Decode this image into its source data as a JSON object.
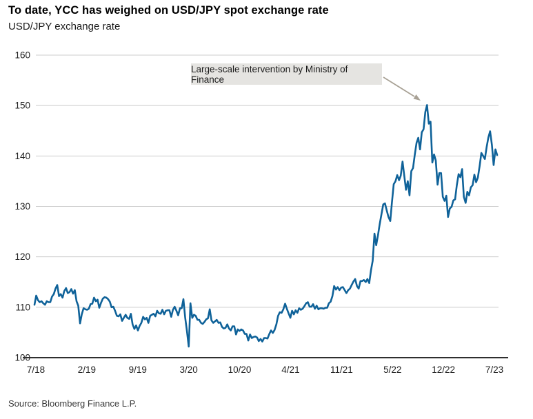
{
  "header": {
    "title": "To date, YCC has weighed on USD/JPY spot exchange rate",
    "subtitle": "USD/JPY exchange rate"
  },
  "annotation": {
    "text": "Large-scale intervention by Ministry of Finance"
  },
  "source": {
    "label": "Source: Bloomberg Finance L.P."
  },
  "chart_data": {
    "type": "line",
    "title": "To date, YCC has weighed on USD/JPY spot exchange rate",
    "subtitle": "USD/JPY exchange rate",
    "xlabel": "",
    "ylabel": "",
    "ylim": [
      100,
      160
    ],
    "grid": "horizontal",
    "legend_position": "none",
    "x_tick_labels": [
      "7/18",
      "2/19",
      "9/19",
      "3/20",
      "10/20",
      "4/21",
      "11/21",
      "5/22",
      "12/22",
      "7/23"
    ],
    "y_tick_labels": [
      160,
      150,
      140,
      130,
      120,
      110,
      100
    ],
    "annotation": {
      "text": "Large-scale intervention by Ministry of Finance",
      "points_to_value": 150.1,
      "points_to_date": "10/22"
    },
    "colors": {
      "line": "#0f6299",
      "gridline": "#cccccc",
      "axis": "#2f2f2f",
      "tick_text": "#222222",
      "annotation_bg": "#e5e4e1",
      "arrow": "#a8a195"
    },
    "series": [
      {
        "name": "USD/JPY spot exchange rate",
        "frequency": "weekly",
        "start_label": "7/18",
        "end_label": "7/23",
        "values": [
          110.5,
          112.3,
          111.4,
          111.0,
          111.2,
          110.8,
          110.5,
          111.2,
          111.0,
          111.0,
          112.1,
          112.6,
          113.7,
          114.4,
          112.2,
          112.6,
          111.9,
          113.2,
          113.8,
          112.8,
          113.0,
          113.6,
          112.7,
          113.4,
          111.2,
          110.3,
          106.8,
          108.6,
          109.8,
          109.6,
          109.5,
          109.7,
          110.6,
          110.7,
          111.9,
          111.2,
          111.5,
          109.9,
          110.9,
          111.7,
          112.0,
          111.9,
          111.6,
          111.1,
          110.0,
          110.1,
          109.3,
          108.3,
          108.2,
          108.6,
          107.3,
          107.9,
          108.5,
          107.9,
          107.7,
          108.7,
          106.6,
          105.7,
          106.4,
          105.4,
          106.3,
          106.9,
          108.1,
          107.6,
          107.9,
          106.9,
          108.3,
          108.5,
          108.7,
          108.2,
          109.3,
          108.8,
          108.7,
          109.5,
          108.6,
          109.3,
          109.4,
          109.4,
          108.1,
          109.5,
          110.1,
          109.3,
          108.4,
          109.8,
          109.8,
          111.6,
          107.9,
          105.3,
          102.2,
          110.8,
          107.9,
          108.5,
          108.3,
          107.5,
          107.5,
          106.9,
          106.7,
          107.1,
          107.6,
          107.8,
          109.6,
          107.4,
          106.9,
          107.2,
          107.5,
          106.9,
          107.0,
          106.1,
          105.8,
          105.9,
          106.6,
          105.8,
          105.4,
          106.2,
          106.2,
          104.6,
          105.6,
          105.3,
          105.6,
          105.4,
          104.7,
          104.7,
          103.4,
          104.6,
          103.9,
          104.1,
          104.2,
          104.0,
          103.3,
          103.7,
          103.2,
          103.9,
          103.9,
          103.8,
          104.7,
          105.4,
          104.9,
          105.5,
          106.6,
          108.3,
          109.0,
          108.9,
          109.6,
          110.7,
          109.7,
          108.8,
          107.9,
          109.3,
          108.6,
          109.4,
          108.9,
          109.8,
          109.5,
          109.7,
          110.2,
          110.8,
          111.0,
          110.1,
          110.1,
          110.6,
          109.7,
          110.3,
          109.6,
          109.8,
          109.8,
          109.7,
          109.9,
          109.9,
          110.8,
          111.1,
          112.2,
          114.2,
          113.5,
          114.0,
          113.4,
          113.9,
          114.0,
          113.4,
          112.8,
          113.4,
          113.7,
          114.4,
          115.1,
          115.6,
          114.2,
          113.7,
          115.2,
          115.2,
          115.4,
          115.0,
          115.6,
          114.8,
          117.3,
          119.2,
          124.6,
          122.3,
          124.3,
          126.5,
          128.5,
          130.4,
          130.6,
          129.2,
          127.9,
          127.1,
          130.9,
          134.4,
          135.0,
          136.2,
          135.2,
          136.1,
          138.9,
          136.1,
          133.3,
          135.0,
          132.2,
          137.0,
          137.6,
          140.2,
          142.6,
          143.6,
          141.3,
          144.7,
          145.3,
          148.7,
          150.1,
          146.4,
          146.8,
          138.7,
          140.3,
          139.1,
          134.3,
          136.6,
          136.6,
          131.9,
          131.1,
          132.1,
          127.9,
          129.6,
          129.9,
          131.2,
          131.4,
          134.2,
          136.4,
          135.8,
          137.4,
          131.9,
          130.7,
          132.9,
          132.2,
          133.8,
          134.2,
          136.3,
          134.8,
          135.7,
          138.0,
          140.6,
          140.0,
          139.4,
          141.8,
          143.7,
          144.9,
          142.2,
          138.2,
          141.3,
          140.2
        ]
      }
    ]
  }
}
